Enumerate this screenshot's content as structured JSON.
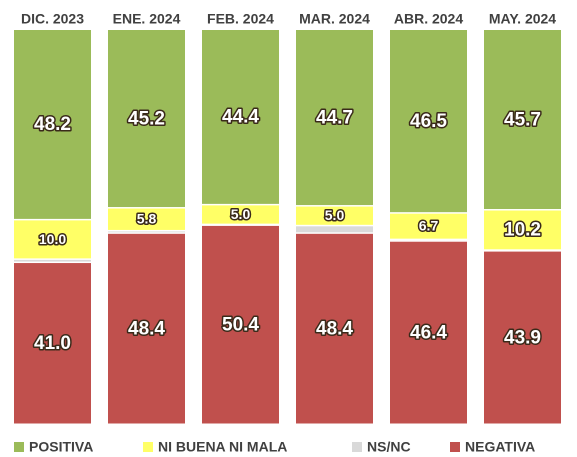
{
  "chart_data": {
    "type": "bar",
    "stacked": true,
    "categories": [
      "DIC. 2023",
      "ENE. 2024",
      "FEB. 2024",
      "MAR. 2024",
      "ABR. 2024",
      "MAY. 2024"
    ],
    "series": [
      {
        "name": "POSITIVA",
        "color": "#9bbb59",
        "values": [
          48.2,
          45.2,
          44.4,
          44.7,
          46.5,
          45.7
        ],
        "value_labels": [
          "48.2",
          "45.2",
          "44.4",
          "44.7",
          "46.5",
          "45.7"
        ]
      },
      {
        "name": "NI BUENA NI MALA",
        "color": "#ffff66",
        "values": [
          10.0,
          5.8,
          5.0,
          5.0,
          6.7,
          10.2
        ],
        "value_labels": [
          "10.0",
          "5.8",
          "5.0",
          "5.0",
          "6.7",
          "10.2"
        ]
      },
      {
        "name": "NS/NC",
        "color": "#d9d9d9",
        "values": [
          0.8,
          0.6,
          0.2,
          1.9,
          0.4,
          0.2
        ]
      },
      {
        "name": "NEGATIVA",
        "color": "#c0504d",
        "values": [
          41.0,
          48.4,
          50.4,
          48.4,
          46.4,
          43.9
        ],
        "value_labels": [
          "41.0",
          "48.4",
          "50.4",
          "48.4",
          "46.4",
          "43.9"
        ]
      }
    ]
  }
}
